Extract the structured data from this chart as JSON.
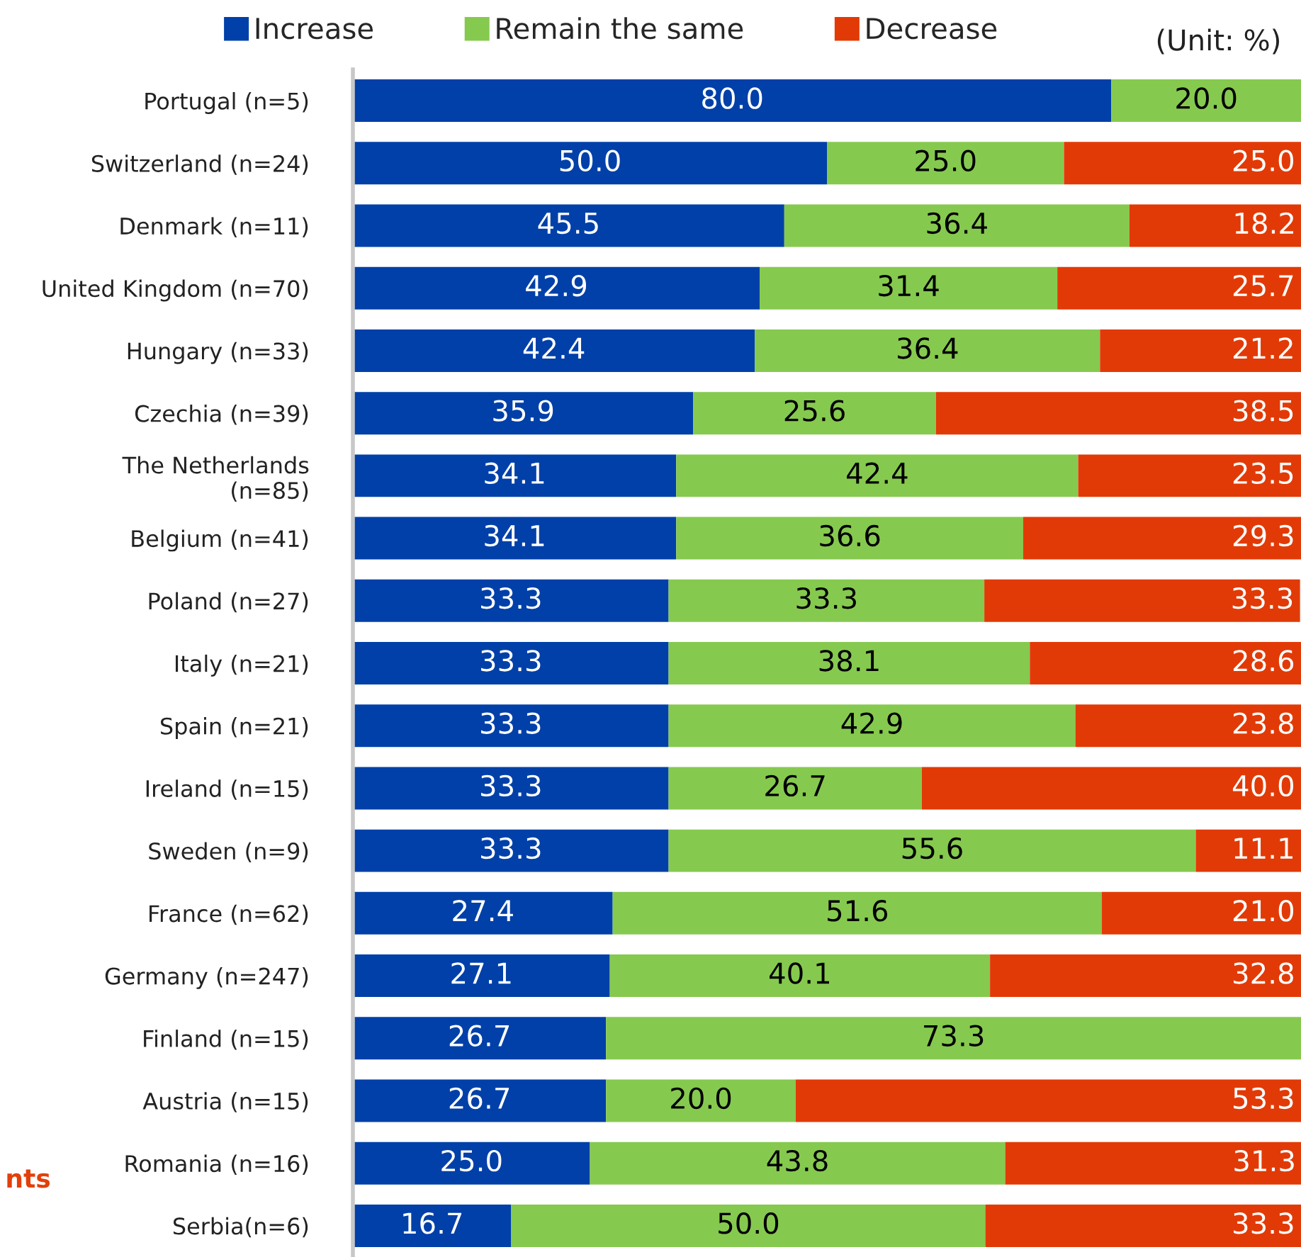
{
  "chart_data": {
    "type": "bar",
    "orientation": "horizontal",
    "stacked": true,
    "categories": [
      "Portugal (n=5)",
      "Switzerland (n=24)",
      "Denmark (n=11)",
      "United Kingdom (n=70)",
      "Hungary (n=33)",
      "Czechia (n=39)",
      "The Netherlands\n(n=85)",
      "Belgium (n=41)",
      "Poland (n=27)",
      "Italy (n=21)",
      "Spain (n=21)",
      "Ireland (n=15)",
      "Sweden (n=9)",
      "France (n=62)",
      "Germany (n=247)",
      "Finland (n=15)",
      "Austria (n=15)",
      "Romania (n=16)",
      "Serbia(n=6)"
    ],
    "series": [
      {
        "name": "Increase",
        "color": "#0040a8",
        "values": [
          80.0,
          50.0,
          45.5,
          42.9,
          42.4,
          35.9,
          34.1,
          34.1,
          33.3,
          33.3,
          33.3,
          33.3,
          33.3,
          27.4,
          27.1,
          26.7,
          26.7,
          25.0,
          16.7
        ],
        "value_labels": [
          "80.0",
          "50.0",
          "45.5",
          "42.9",
          "42.4",
          "35.9",
          "34.1",
          "34.1",
          "33.3",
          "33.3",
          "33.3",
          "33.3",
          "33.3",
          "27.4",
          "27.1",
          "26.7",
          "26.7",
          "25.0",
          "16.7"
        ]
      },
      {
        "name": "Remain the same",
        "color": "#86c94f",
        "values": [
          20.0,
          25.0,
          36.4,
          31.4,
          36.4,
          25.6,
          42.4,
          36.6,
          33.3,
          38.1,
          42.9,
          26.7,
          55.6,
          51.6,
          40.1,
          73.3,
          20.0,
          43.8,
          50.0
        ],
        "value_labels": [
          "20.0",
          "25.0",
          "36.4",
          "31.4",
          "36.4",
          "25.6",
          "42.4",
          "36.6",
          "33.3",
          "38.1",
          "42.9",
          "26.7",
          "55.6",
          "51.6",
          "40.1",
          "73.3",
          "20.0",
          "43.8",
          "50.0"
        ]
      },
      {
        "name": "Decrease",
        "color": "#e23a06",
        "values": [
          null,
          25.0,
          18.2,
          25.7,
          21.2,
          38.5,
          23.5,
          29.3,
          33.3,
          28.6,
          23.8,
          40.0,
          11.1,
          21.0,
          32.8,
          null,
          53.3,
          31.3,
          33.3
        ],
        "value_labels": [
          null,
          "25.0",
          "18.2",
          "25.7",
          "21.2",
          "38.5",
          "23.5",
          "29.3",
          "33.3",
          "28.6",
          "23.8",
          "40.0",
          "11.1",
          "21.0",
          "32.8",
          null,
          "53.3",
          "31.3",
          "33.3"
        ]
      }
    ],
    "xlim": [
      0,
      100
    ],
    "legend": "top",
    "tick_labels": "y",
    "annotations": [
      "(Unit: %)",
      "nts"
    ]
  }
}
